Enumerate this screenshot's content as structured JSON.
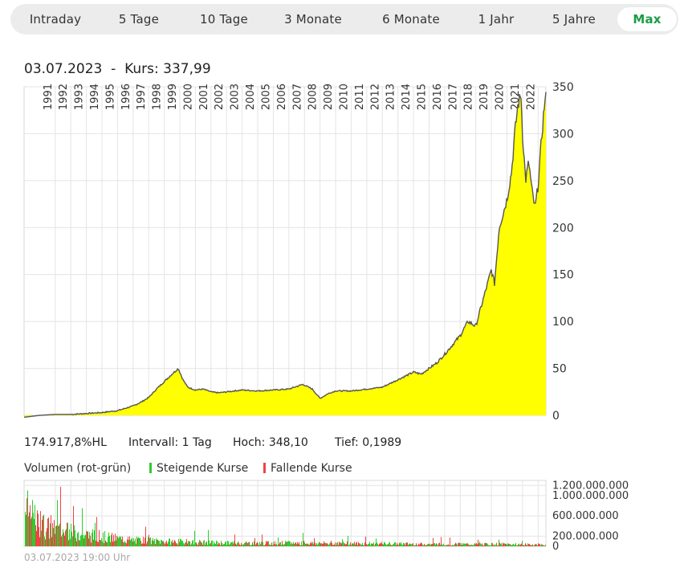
{
  "tabs": [
    {
      "label": "Intraday",
      "active": false
    },
    {
      "label": "5 Tage",
      "active": false
    },
    {
      "label": "10 Tage",
      "active": false
    },
    {
      "label": "3 Monate",
      "active": false
    },
    {
      "label": "6 Monate",
      "active": false
    },
    {
      "label": "1 Jahr",
      "active": false
    },
    {
      "label": "5 Jahre",
      "active": false
    },
    {
      "label": "Max",
      "active": true
    }
  ],
  "header": {
    "date": "03.07.2023",
    "separator": "-",
    "kurs": "Kurs: 337,99"
  },
  "stats": {
    "change": "174.917,8%HL",
    "interval": "Intervall: 1 Tag",
    "high": "Hoch:  348,10",
    "low": "Tief: 0,1989"
  },
  "legend": {
    "title": "Volumen (rot-grün)",
    "rising": "Steigende Kurse",
    "falling": "Fallende Kurse"
  },
  "footer": {
    "timestamp": "03.07.2023 19:00 Uhr"
  },
  "colors": {
    "accent": "#1a9c46",
    "area_fill": "#ffff00",
    "line": "#555555",
    "grid": "#e4e4e4",
    "rising": "#2ecc2e",
    "falling": "#ee4444"
  },
  "chart_data": [
    {
      "type": "area",
      "title": "",
      "xlabel": "",
      "ylabel": "",
      "x_ticks": [
        "1991",
        "1992",
        "1993",
        "1994",
        "1995",
        "1996",
        "1997",
        "1998",
        "1999",
        "2000",
        "2001",
        "2002",
        "2003",
        "2004",
        "2005",
        "2006",
        "2007",
        "2008",
        "2009",
        "2010",
        "2011",
        "2012",
        "2013",
        "2014",
        "2015",
        "2016",
        "2017",
        "2018",
        "2019",
        "2020",
        "2021",
        "2022"
      ],
      "y_ticks": [
        0,
        50,
        100,
        150,
        200,
        250,
        300,
        350
      ],
      "ylim": [
        0,
        350
      ],
      "grid": true,
      "series": [
        {
          "x": [
            1990.0,
            1991.0,
            1992.0,
            1993.0,
            1994.0,
            1995.0,
            1996.0,
            1997.0,
            1997.5,
            1998.0,
            1998.5,
            1999.0,
            1999.5,
            1999.9,
            2000.2,
            2000.5,
            2001.0,
            2001.5,
            2002.0,
            2002.5,
            2003.0,
            2004.0,
            2005.0,
            2006.0,
            2007.0,
            2007.9,
            2008.5,
            2009.0,
            2009.5,
            2010.0,
            2011.0,
            2012.0,
            2013.0,
            2014.0,
            2014.5,
            2015.0,
            2015.5,
            2016.0,
            2016.5,
            2017.0,
            2017.5,
            2018.0,
            2018.5,
            2019.0,
            2019.5,
            2020.0,
            2020.2,
            2020.5,
            2021.0,
            2021.3,
            2021.5,
            2021.7,
            2021.9,
            2022.0,
            2022.2,
            2022.4,
            2022.6,
            2022.8,
            2023.0,
            2023.2,
            2023.4,
            2023.5
          ],
          "y": [
            -2,
            0,
            1,
            1,
            2,
            3,
            5,
            10,
            14,
            19,
            28,
            36,
            44,
            50,
            38,
            30,
            27,
            28,
            25,
            24,
            25,
            27,
            26,
            27,
            28,
            33,
            28,
            18,
            23,
            26,
            26,
            28,
            30,
            38,
            42,
            46,
            44,
            50,
            56,
            65,
            75,
            85,
            100,
            95,
            125,
            155,
            140,
            200,
            230,
            260,
            300,
            330,
            342,
            300,
            250,
            270,
            240,
            220,
            245,
            290,
            330,
            338
          ]
        }
      ]
    },
    {
      "type": "bar",
      "title": "Volumen (rot-grün)",
      "x_range": [
        1990,
        2023.5
      ],
      "y_ticks": [
        "0",
        "200.000.000",
        "600.000.000",
        "1.000.000.000",
        "1.200.000.000"
      ],
      "y_tick_values": [
        0,
        200000000,
        600000000,
        1000000000,
        1200000000
      ],
      "ylim": [
        0,
        1300000000
      ],
      "profile": {
        "x": [
          1990.0,
          1990.5,
          1991.0,
          1992.0,
          1993.0,
          1994.0,
          1995.0,
          1996.0,
          1997.0,
          1999.0,
          2001.0,
          2003.0,
          2005.0,
          2007.0,
          2008.5,
          2010.0,
          2013.0,
          2016.0,
          2019.0,
          2020.5,
          2022.0,
          2023.5
        ],
        "y": [
          1000000000,
          750000000,
          550000000,
          420000000,
          360000000,
          300000000,
          250000000,
          200000000,
          160000000,
          130000000,
          110000000,
          90000000,
          85000000,
          90000000,
          85000000,
          80000000,
          70000000,
          60000000,
          55000000,
          60000000,
          50000000,
          40000000
        ]
      }
    }
  ]
}
